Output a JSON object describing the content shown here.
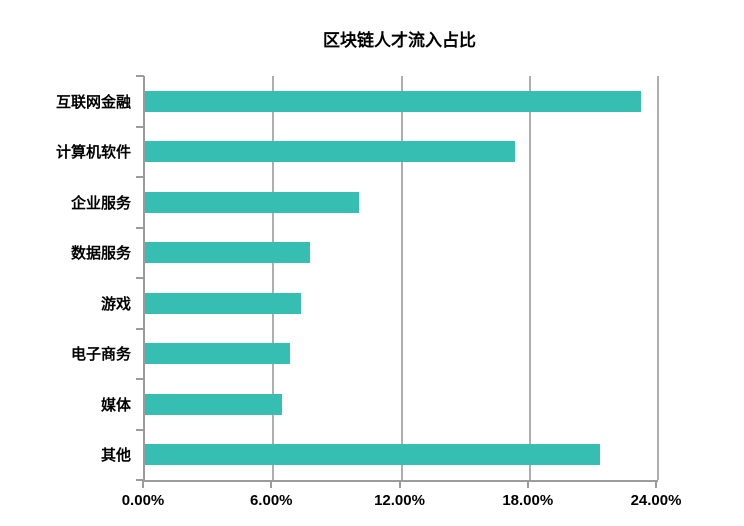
{
  "title": "区块链人才流入占比",
  "colors": {
    "bar": "#35beb1",
    "gridline": "#aeaeae",
    "axis": "#9b9b9b",
    "text": "#000000",
    "background": "#ffffff"
  },
  "chart_data": {
    "type": "bar",
    "orientation": "horizontal",
    "title": "区块链人才流入占比",
    "categories": [
      "互联网金融",
      "计算机软件",
      "企业服务",
      "数据服务",
      "游戏",
      "电子商务",
      "媒体",
      "其他"
    ],
    "values": [
      23.2,
      17.3,
      10.0,
      7.7,
      7.3,
      6.8,
      6.4,
      21.3
    ],
    "unit": "%",
    "xlabel": "",
    "ylabel": "",
    "xlim": [
      0,
      24
    ],
    "x_ticks": [
      "0.00%",
      "6.00%",
      "12.00%",
      "18.00%",
      "24.00%"
    ],
    "x_tick_values": [
      0,
      6,
      12,
      18,
      24
    ],
    "grid": true,
    "legend": false
  }
}
